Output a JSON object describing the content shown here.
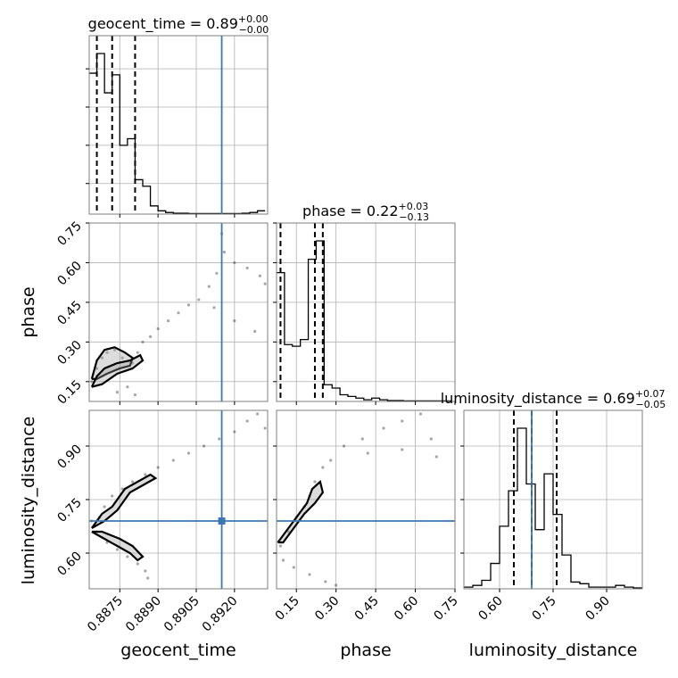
{
  "chart_data": {
    "type": "corner",
    "parameters": [
      {
        "name": "geocent_time",
        "label": "geocent_time",
        "median": "0.89",
        "plus": "+0.00",
        "minus": "−0.00"
      },
      {
        "name": "phase",
        "label": "phase",
        "median": "0.22",
        "plus": "+0.03",
        "minus": "−0.13"
      },
      {
        "name": "luminosity_distance",
        "label": "luminosity_distance",
        "median": "0.69",
        "plus": "+0.07",
        "minus": "−0.05"
      }
    ],
    "truth": {
      "geocent_time": 0.8915,
      "phase": null,
      "luminosity_distance": 0.69
    },
    "truth_color": "#3b78b0",
    "axes": {
      "geocent_time": {
        "lim": [
          0.8863,
          0.8933
        ],
        "ticks": [
          0.8875,
          0.889,
          0.8905,
          0.892
        ],
        "tick_labels": [
          "0.8875",
          "0.8890",
          "0.8905",
          "0.8920"
        ]
      },
      "phase": {
        "lim": [
          0.075,
          0.75
        ],
        "ticks": [
          0.15,
          0.3,
          0.45,
          0.6,
          0.75
        ],
        "tick_labels": [
          "0.15",
          "0.30",
          "0.45",
          "0.60",
          "0.75"
        ]
      },
      "luminosity_distance": {
        "lim": [
          0.5,
          1.0
        ],
        "ticks": [
          0.6,
          0.75,
          0.9
        ],
        "tick_labels": [
          "0.60",
          "0.75",
          "0.90"
        ]
      }
    },
    "histograms": {
      "geocent_time": {
        "bin_edges": [
          0.8863,
          0.8866,
          0.8869,
          0.8872,
          0.8875,
          0.8878,
          0.8881,
          0.8884,
          0.8887,
          0.889,
          0.8893,
          0.8896,
          0.8899,
          0.8902,
          0.8905,
          0.8908,
          0.8911,
          0.8914,
          0.8917,
          0.892,
          0.8923,
          0.8926,
          0.8929,
          0.8932
        ],
        "counts": [
          0.86,
          0.98,
          0.74,
          0.85,
          0.42,
          0.46,
          0.21,
          0.17,
          0.05,
          0.02,
          0.01,
          0.005,
          0.005,
          0.003,
          0.003,
          0.003,
          0.003,
          0.003,
          0.003,
          0.003,
          0.005,
          0.01,
          0.02
        ],
        "quantiles": [
          0.8866,
          0.8872,
          0.8881
        ]
      },
      "phase": {
        "bin_edges": [
          0.075,
          0.105,
          0.135,
          0.165,
          0.195,
          0.225,
          0.255,
          0.285,
          0.315,
          0.345,
          0.375,
          0.405,
          0.435,
          0.465,
          0.495,
          0.525,
          0.555,
          0.585,
          0.615,
          0.645,
          0.675,
          0.705,
          0.735
        ],
        "counts": [
          0.77,
          0.34,
          0.33,
          0.37,
          0.85,
          0.96,
          0.1,
          0.08,
          0.04,
          0.03,
          0.02,
          0.01,
          0.02,
          0.01,
          0.005,
          0.005,
          0.003,
          0.003,
          0.003,
          0.003,
          0.003,
          0.003
        ],
        "quantiles": [
          0.09,
          0.22,
          0.25
        ]
      },
      "luminosity_distance": {
        "bin_edges": [
          0.5,
          0.525,
          0.55,
          0.575,
          0.6,
          0.625,
          0.65,
          0.675,
          0.7,
          0.725,
          0.75,
          0.775,
          0.8,
          0.825,
          0.85,
          0.875,
          0.9,
          0.925,
          0.95,
          0.975,
          1.0
        ],
        "counts": [
          0.01,
          0.02,
          0.05,
          0.15,
          0.37,
          0.58,
          0.95,
          0.62,
          0.35,
          0.68,
          0.44,
          0.2,
          0.04,
          0.03,
          0.01,
          0.01,
          0.01,
          0.02,
          0.01,
          0.005
        ],
        "quantiles": [
          0.64,
          0.69,
          0.76
        ]
      }
    },
    "scatter": {
      "phase_vs_geocent_time": [
        [
          0.8864,
          0.15
        ],
        [
          0.8866,
          0.2
        ],
        [
          0.8868,
          0.24
        ],
        [
          0.887,
          0.26
        ],
        [
          0.8873,
          0.27
        ],
        [
          0.8876,
          0.24
        ],
        [
          0.888,
          0.22
        ],
        [
          0.8882,
          0.26
        ],
        [
          0.8884,
          0.3
        ],
        [
          0.8887,
          0.32
        ],
        [
          0.889,
          0.35
        ],
        [
          0.8894,
          0.38
        ],
        [
          0.8898,
          0.41
        ],
        [
          0.8902,
          0.44
        ],
        [
          0.8906,
          0.46
        ],
        [
          0.891,
          0.51
        ],
        [
          0.8913,
          0.56
        ],
        [
          0.8916,
          0.64
        ],
        [
          0.8915,
          0.71
        ],
        [
          0.892,
          0.6
        ],
        [
          0.8925,
          0.58
        ],
        [
          0.893,
          0.55
        ],
        [
          0.8932,
          0.52
        ],
        [
          0.8912,
          0.43
        ],
        [
          0.892,
          0.38
        ],
        [
          0.8928,
          0.34
        ],
        [
          0.8874,
          0.11
        ],
        [
          0.8881,
          0.1
        ],
        [
          0.8878,
          0.13
        ]
      ],
      "luminosity_distance_vs_geocent_time": [
        [
          0.8864,
          0.69
        ],
        [
          0.8867,
          0.7
        ],
        [
          0.8869,
          0.73
        ],
        [
          0.8872,
          0.76
        ],
        [
          0.8876,
          0.78
        ],
        [
          0.888,
          0.8
        ],
        [
          0.8885,
          0.82
        ],
        [
          0.889,
          0.84
        ],
        [
          0.8896,
          0.86
        ],
        [
          0.8902,
          0.88
        ],
        [
          0.8908,
          0.9
        ],
        [
          0.8914,
          0.92
        ],
        [
          0.892,
          0.94
        ],
        [
          0.8925,
          0.97
        ],
        [
          0.8929,
          0.99
        ],
        [
          0.8932,
          0.95
        ],
        [
          0.8866,
          0.66
        ],
        [
          0.887,
          0.63
        ],
        [
          0.8874,
          0.61
        ],
        [
          0.8878,
          0.59
        ],
        [
          0.8882,
          0.57
        ],
        [
          0.8885,
          0.55
        ],
        [
          0.8886,
          0.53
        ]
      ],
      "luminosity_distance_vs_phase": [
        [
          0.09,
          0.62
        ],
        [
          0.12,
          0.66
        ],
        [
          0.15,
          0.7
        ],
        [
          0.18,
          0.73
        ],
        [
          0.2,
          0.76
        ],
        [
          0.22,
          0.8
        ],
        [
          0.25,
          0.84
        ],
        [
          0.28,
          0.86
        ],
        [
          0.33,
          0.9
        ],
        [
          0.4,
          0.92
        ],
        [
          0.48,
          0.95
        ],
        [
          0.55,
          0.97
        ],
        [
          0.62,
          0.99
        ],
        [
          0.66,
          0.92
        ],
        [
          0.68,
          0.87
        ],
        [
          0.55,
          0.89
        ],
        [
          0.42,
          0.88
        ],
        [
          0.1,
          0.58
        ],
        [
          0.14,
          0.56
        ],
        [
          0.2,
          0.54
        ],
        [
          0.26,
          0.52
        ],
        [
          0.3,
          0.51
        ]
      ]
    },
    "contours": {
      "phase_vs_geocent_time": [
        [
          [
            0.8864,
            0.16
          ],
          [
            0.8866,
            0.23
          ],
          [
            0.8869,
            0.27
          ],
          [
            0.8873,
            0.28
          ],
          [
            0.8877,
            0.26
          ],
          [
            0.888,
            0.24
          ],
          [
            0.8879,
            0.21
          ],
          [
            0.8875,
            0.2
          ],
          [
            0.887,
            0.18
          ],
          [
            0.8866,
            0.16
          ],
          [
            0.8864,
            0.16
          ]
        ],
        [
          [
            0.8864,
            0.13
          ],
          [
            0.8866,
            0.17
          ],
          [
            0.8869,
            0.2
          ],
          [
            0.8874,
            0.22
          ],
          [
            0.8879,
            0.23
          ],
          [
            0.8883,
            0.25
          ],
          [
            0.8884,
            0.23
          ],
          [
            0.888,
            0.2
          ],
          [
            0.8874,
            0.18
          ],
          [
            0.8868,
            0.14
          ],
          [
            0.8864,
            0.13
          ]
        ]
      ],
      "luminosity_distance_vs_geocent_time": [
        [
          [
            0.8864,
            0.67
          ],
          [
            0.8868,
            0.71
          ],
          [
            0.8872,
            0.73
          ],
          [
            0.8877,
            0.78
          ],
          [
            0.8882,
            0.8
          ],
          [
            0.8887,
            0.82
          ],
          [
            0.8889,
            0.81
          ],
          [
            0.8884,
            0.79
          ],
          [
            0.8879,
            0.77
          ],
          [
            0.8874,
            0.72
          ],
          [
            0.8869,
            0.69
          ],
          [
            0.8864,
            0.67
          ]
        ],
        [
          [
            0.8864,
            0.66
          ],
          [
            0.8869,
            0.64
          ],
          [
            0.8874,
            0.62
          ],
          [
            0.8879,
            0.6
          ],
          [
            0.8882,
            0.58
          ],
          [
            0.8884,
            0.59
          ],
          [
            0.888,
            0.62
          ],
          [
            0.8875,
            0.64
          ],
          [
            0.8868,
            0.66
          ],
          [
            0.8864,
            0.66
          ]
        ]
      ],
      "luminosity_distance_vs_phase": [
        [
          [
            0.08,
            0.63
          ],
          [
            0.12,
            0.67
          ],
          [
            0.16,
            0.71
          ],
          [
            0.19,
            0.74
          ],
          [
            0.21,
            0.78
          ],
          [
            0.24,
            0.8
          ],
          [
            0.25,
            0.77
          ],
          [
            0.22,
            0.74
          ],
          [
            0.18,
            0.71
          ],
          [
            0.14,
            0.67
          ],
          [
            0.1,
            0.63
          ],
          [
            0.08,
            0.63
          ]
        ]
      ]
    }
  }
}
